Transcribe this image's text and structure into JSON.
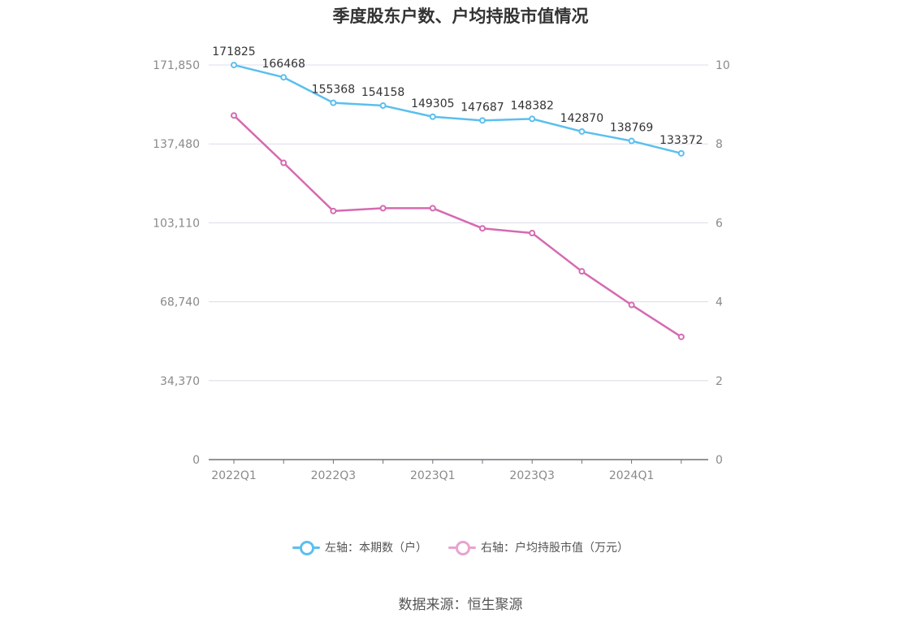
{
  "title": "季度股东户数、户均持股市值情况",
  "source": "数据来源：恒生聚源",
  "colors": {
    "left_series": "#5bbfee",
    "right_series": "#d56ab1",
    "grid": "#dcdcec",
    "axis": "#6e7079"
  },
  "legend": [
    {
      "label": "左轴：本期数（户）",
      "color": "#5bbfee"
    },
    {
      "label": "右轴：户均持股市值（万元）",
      "color": "#e8a3d0"
    }
  ],
  "chart_data": {
    "type": "line",
    "x": [
      "2022Q1",
      "2022Q2",
      "2022Q3",
      "2022Q4",
      "2023Q1",
      "2023Q2",
      "2023Q3",
      "2023Q4",
      "2024Q1",
      "2024Q2"
    ],
    "x_tick_labels": [
      "2022Q1",
      "2022Q3",
      "2023Q1",
      "2023Q3",
      "2024Q1"
    ],
    "y_left": {
      "ticks": [
        "0",
        "34,370",
        "68,740",
        "103,110",
        "137,480",
        "171,850"
      ],
      "lim": [
        0,
        171850
      ]
    },
    "y_right": {
      "ticks": [
        "0",
        "2",
        "4",
        "6",
        "8",
        "10"
      ],
      "lim": [
        0,
        10
      ]
    },
    "series": [
      {
        "name": "左轴：本期数（户）",
        "axis": "left",
        "values": [
          171825,
          166468,
          155368,
          154158,
          149305,
          147687,
          148382,
          142870,
          138769,
          133372
        ],
        "labels": [
          "171825",
          "166468",
          "155368",
          "154158",
          "149305",
          "147687",
          "148382",
          "142870",
          "138769",
          "133372"
        ]
      },
      {
        "name": "右轴：户均持股市值（万元）",
        "axis": "right",
        "values": [
          8.72,
          7.52,
          6.3,
          6.37,
          6.37,
          5.86,
          5.74,
          4.77,
          3.92,
          3.11
        ]
      }
    ],
    "grid": true,
    "legend_position": "bottom"
  }
}
